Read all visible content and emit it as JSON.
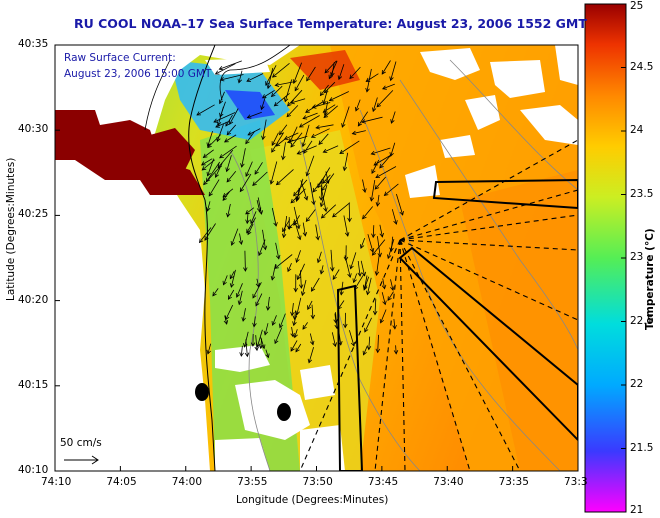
{
  "title": "RU COOL  NOAA–17  Sea Surface Temperature:  August 23, 2006 1552 GMT",
  "legend": {
    "line1": "Raw Surface Current:",
    "line2": "August 23, 2006 15:00 GMT",
    "scale_label": "50 cm/s"
  },
  "axes": {
    "xlabel": "Longitude (Degrees:Minutes)",
    "ylabel": "Latitude (Degrees:Minutes)",
    "xticks": [
      "74:10",
      "74:05",
      "74:00",
      "73:55",
      "73:50",
      "73:45",
      "73:40",
      "73:35",
      "73:3"
    ],
    "yticks": [
      "40:35",
      "40:30",
      "40:25",
      "40:20",
      "40:15",
      "40:10"
    ]
  },
  "colorbar": {
    "label": "Temperature (°C)",
    "ticks": [
      "25",
      "24.5",
      "24",
      "23.5",
      "23",
      "22.5",
      "22",
      "21.5",
      "21"
    ],
    "min": 21,
    "max": 25,
    "colors": [
      "#ff00ff",
      "#3a3aff",
      "#00aaff",
      "#00dddd",
      "#55ee55",
      "#ccee22",
      "#ffcc00",
      "#ff8800",
      "#ee3300",
      "#990000"
    ]
  },
  "map": {
    "land_color": "#ffffff",
    "cloud_color": "#ffffff",
    "hot_land_color": "#8b0000",
    "sst_regions": [
      {
        "name": "warm-offshore",
        "color": "#ff9900"
      },
      {
        "name": "mid-orange",
        "color": "#ffb300"
      },
      {
        "name": "yellow-band",
        "color": "#e9e020"
      },
      {
        "name": "green-nearshore",
        "color": "#7fe24a"
      },
      {
        "name": "cool-plume",
        "color": "#22bbff"
      },
      {
        "name": "red-upper",
        "color": "#e63a00"
      }
    ]
  }
}
